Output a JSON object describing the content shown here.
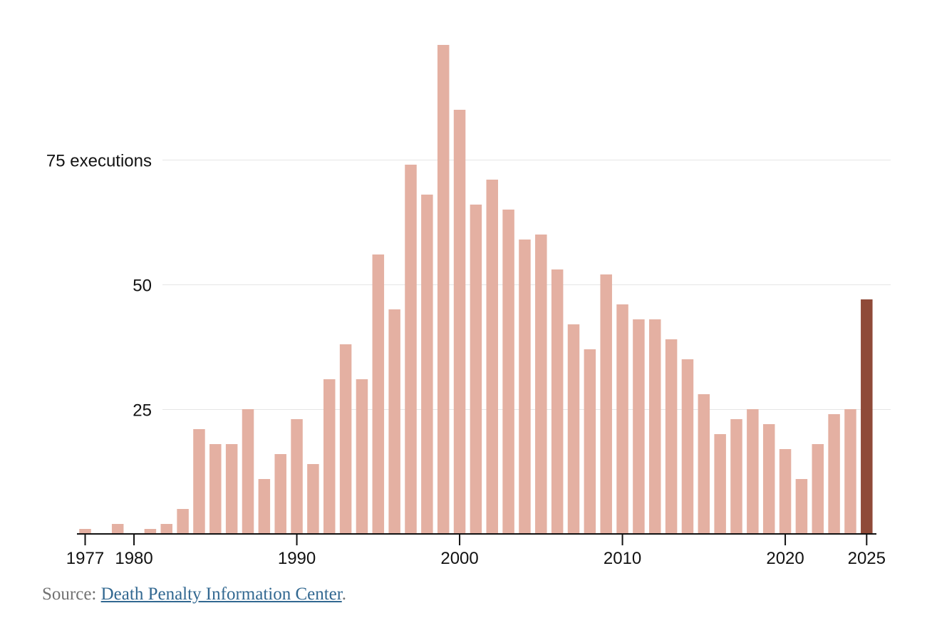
{
  "chart_data": {
    "type": "bar",
    "title": "",
    "xlabel": "",
    "ylabel": "executions",
    "ylim": [
      0,
      100
    ],
    "y_ticks": [
      {
        "value": 75,
        "label": "75 executions"
      },
      {
        "value": 50,
        "label": "50"
      },
      {
        "value": 25,
        "label": "25"
      }
    ],
    "x_ticks": [
      {
        "year": 1977,
        "label": "1977"
      },
      {
        "year": 1980,
        "label": "1980"
      },
      {
        "year": 1990,
        "label": "1990"
      },
      {
        "year": 2000,
        "label": "2000"
      },
      {
        "year": 2010,
        "label": "2010"
      },
      {
        "year": 2020,
        "label": "2020"
      },
      {
        "year": 2025,
        "label": "2025"
      }
    ],
    "categories": [
      1977,
      1978,
      1979,
      1980,
      1981,
      1982,
      1983,
      1984,
      1985,
      1986,
      1987,
      1988,
      1989,
      1990,
      1991,
      1992,
      1993,
      1994,
      1995,
      1996,
      1997,
      1998,
      1999,
      2000,
      2001,
      2002,
      2003,
      2004,
      2005,
      2006,
      2007,
      2008,
      2009,
      2010,
      2011,
      2012,
      2013,
      2014,
      2015,
      2016,
      2017,
      2018,
      2019,
      2020,
      2021,
      2022,
      2023,
      2024,
      2025
    ],
    "values": [
      1,
      0,
      2,
      0,
      1,
      2,
      5,
      21,
      18,
      18,
      25,
      11,
      16,
      23,
      14,
      31,
      38,
      31,
      56,
      45,
      74,
      68,
      98,
      85,
      66,
      71,
      65,
      59,
      60,
      53,
      42,
      37,
      52,
      46,
      43,
      43,
      39,
      35,
      28,
      20,
      23,
      25,
      22,
      17,
      11,
      18,
      24,
      25,
      47
    ],
    "colors": {
      "default": "#e4b0a2",
      "highlight": "#8f4a38",
      "highlight_category": 2025
    }
  },
  "source": {
    "prefix": "Source: ",
    "link_text": "Death Penalty Information Center",
    "suffix": "."
  }
}
